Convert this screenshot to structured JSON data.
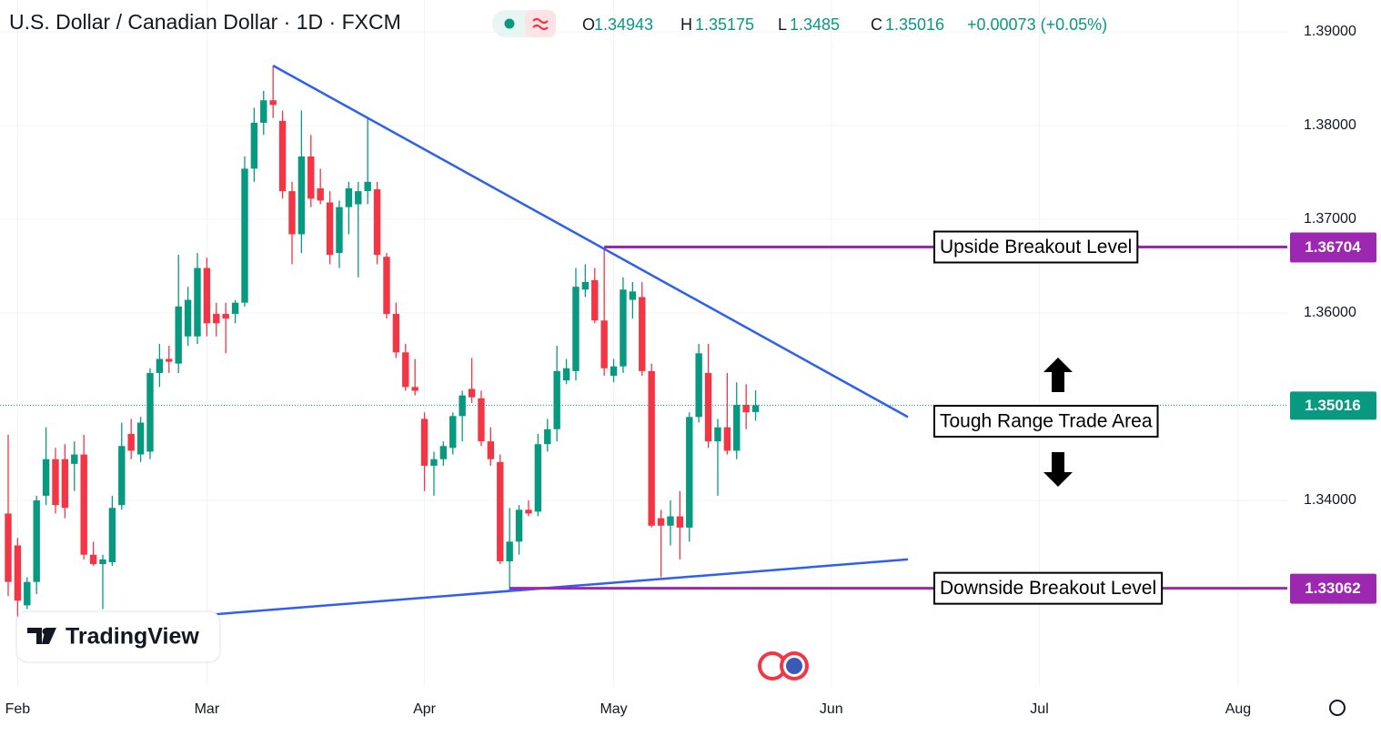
{
  "chart_data": {
    "type": "candlestick",
    "title": "U.S. Dollar / Canadian Dollar · 1D · FXCM",
    "ohlc_labels": [
      "O",
      "H",
      "L",
      "C"
    ],
    "change": "+0.00073 (+0.05%)",
    "up_color": "#089981",
    "down_color": "#f23645",
    "open": [
      1.3386,
      1.3352,
      1.3288,
      1.3313,
      1.3405,
      1.3444,
      1.3444,
      1.3439,
      1.3449,
      1.3342,
      1.3332,
      1.3334,
      1.3395,
      1.3471,
      1.3449,
      1.3452,
      1.3536,
      1.3551,
      1.3546,
      1.3575,
      1.3575,
      1.3648,
      1.3599,
      1.3599,
      1.3599,
      1.3611,
      1.3754,
      1.3803,
      1.3827,
      1.3805,
      1.373,
      1.3684,
      1.3767,
      1.3733,
      1.3718,
      1.3664,
      1.3713,
      1.3716,
      1.373,
      1.3732,
      1.366,
      1.3599,
      1.3558,
      1.3521,
      1.3487,
      1.3437,
      1.3444,
      1.3456,
      1.349,
      1.3519,
      1.3509,
      1.3463,
      1.3441,
      1.3335,
      1.3356,
      1.339,
      1.3388,
      1.346,
      1.3476,
      1.3528,
      1.3538,
      1.3625,
      1.3635,
      1.3592,
      1.3533,
      1.3543,
      1.3614,
      1.3617,
      1.3538,
      1.3381,
      1.3373,
      1.3383,
      1.3371,
      1.3489,
      1.3536,
      1.3463,
      1.3478,
      1.3453,
      1.3502,
      1.34943
    ],
    "high": [
      1.347,
      1.336,
      1.3318,
      1.3405,
      1.3478,
      1.3456,
      1.346,
      1.3463,
      1.347,
      1.3356,
      1.3342,
      1.3405,
      1.3483,
      1.3487,
      1.3489,
      1.3541,
      1.3567,
      1.3565,
      1.3662,
      1.3628,
      1.3664,
      1.3659,
      1.3611,
      1.3611,
      1.3614,
      1.3767,
      1.3819,
      1.3837,
      1.3864,
      1.3816,
      1.374,
      1.3816,
      1.379,
      1.3754,
      1.373,
      1.372,
      1.374,
      1.374,
      1.3808,
      1.374,
      1.3664,
      1.3611,
      1.3567,
      1.3551,
      1.3494,
      1.3452,
      1.3463,
      1.3494,
      1.3517,
      1.3552,
      1.3517,
      1.3478,
      1.3449,
      1.3392,
      1.3395,
      1.34,
      1.3471,
      1.3487,
      1.3565,
      1.3551,
      1.3648,
      1.3652,
      1.3648,
      1.367,
      1.3551,
      1.3638,
      1.3633,
      1.3633,
      1.3546,
      1.339,
      1.34,
      1.341,
      1.3494,
      1.3567,
      1.3567,
      1.3487,
      1.3536,
      1.3526,
      1.3524,
      1.35175
    ],
    "low": [
      1.3298,
      1.3274,
      1.3284,
      1.33,
      1.3395,
      1.3386,
      1.3381,
      1.341,
      1.3337,
      1.333,
      1.3284,
      1.333,
      1.339,
      1.3444,
      1.3441,
      1.3444,
      1.3521,
      1.3536,
      1.3536,
      1.3565,
      1.3567,
      1.3575,
      1.3575,
      1.3557,
      1.3589,
      1.3607,
      1.374,
      1.379,
      1.3808,
      1.3722,
      1.3652,
      1.3664,
      1.3713,
      1.3716,
      1.3652,
      1.3648,
      1.3684,
      1.3638,
      1.3716,
      1.3652,
      1.3594,
      1.3552,
      1.3517,
      1.3512,
      1.341,
      1.3405,
      1.3437,
      1.3449,
      1.3463,
      1.3504,
      1.3458,
      1.3437,
      1.3332,
      1.3303,
      1.3342,
      1.3383,
      1.3383,
      1.3452,
      1.3463,
      1.3524,
      1.3528,
      1.3617,
      1.3589,
      1.3533,
      1.3526,
      1.3536,
      1.3594,
      1.3533,
      1.3371,
      1.3318,
      1.3352,
      1.3337,
      1.3356,
      1.3483,
      1.3456,
      1.3405,
      1.3449,
      1.3444,
      1.3476,
      1.3485
    ],
    "close": [
      1.3313,
      1.3293,
      1.3313,
      1.34,
      1.3444,
      1.3395,
      1.3392,
      1.3449,
      1.3342,
      1.3332,
      1.3337,
      1.3392,
      1.3458,
      1.3453,
      1.3483,
      1.3536,
      1.3551,
      1.3548,
      1.3607,
      1.3614,
      1.3648,
      1.3589,
      1.3589,
      1.3594,
      1.3611,
      1.3754,
      1.3803,
      1.3827,
      1.3822,
      1.373,
      1.3684,
      1.3767,
      1.3722,
      1.372,
      1.3662,
      1.3713,
      1.3733,
      1.373,
      1.374,
      1.3662,
      1.3599,
      1.3558,
      1.3521,
      1.3517,
      1.3437,
      1.3444,
      1.3458,
      1.349,
      1.3512,
      1.351,
      1.3463,
      1.3444,
      1.3335,
      1.3356,
      1.339,
      1.3386,
      1.346,
      1.3476,
      1.3538,
      1.3541,
      1.3628,
      1.3633,
      1.3592,
      1.3541,
      1.3543,
      1.3625,
      1.3623,
      1.3538,
      1.3373,
      1.3373,
      1.3383,
      1.3371,
      1.3489,
      1.3557,
      1.3463,
      1.3478,
      1.3453,
      1.3502,
      1.3494,
      1.35016
    ],
    "xlim": [
      -0.865,
      135.2
    ],
    "ylim": [
      1.3201,
      1.3934
    ],
    "xticks": [
      {
        "value": 1,
        "label": "Feb"
      },
      {
        "value": 21,
        "label": "Mar"
      },
      {
        "value": 44,
        "label": "Apr"
      },
      {
        "value": 64,
        "label": "May"
      },
      {
        "value": 87,
        "label": "Jun"
      },
      {
        "value": 109,
        "label": "Jul"
      },
      {
        "value": 130,
        "label": "Aug"
      }
    ],
    "yticks": [
      {
        "value": 1.39,
        "label": "1.39000"
      },
      {
        "value": 1.38,
        "label": "1.38000"
      },
      {
        "value": 1.37,
        "label": "1.37000"
      },
      {
        "value": 1.36,
        "label": "1.36000"
      },
      {
        "value": 1.34,
        "label": "1.34000"
      }
    ],
    "grid": true,
    "trendlines": [
      {
        "color": "#2f5ff0",
        "x": [
          28,
          95.1
        ],
        "y": [
          1.3864,
          1.3489
        ]
      },
      {
        "color": "#2f5ff0",
        "x": [
          21.25,
          95.1
        ],
        "y": [
          1.3278,
          1.3337
        ]
      }
    ],
    "levels": [
      {
        "label": "Upside Breakout Level",
        "value": 1.36704,
        "start": 63,
        "color": "#9c27b0"
      },
      {
        "label": "Downside Breakout Level",
        "value": 1.33062,
        "start": 53,
        "color": "#9c27b0"
      }
    ],
    "range_annotation": "Tough Range Trade Area",
    "brand": "TradingView"
  }
}
